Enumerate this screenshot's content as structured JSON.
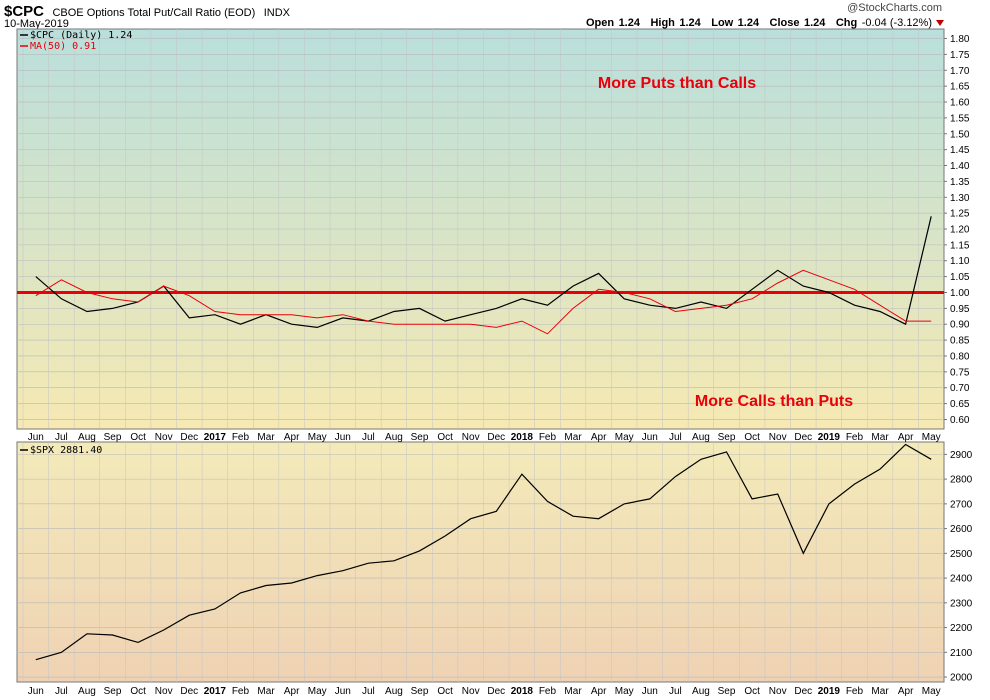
{
  "header": {
    "symbol": "$CPC",
    "description": "CBOE Options Total Put/Call Ratio (EOD)",
    "exchange": "INDX",
    "date": "10-May-2019",
    "credit": "@StockCharts.com",
    "ohlc": {
      "open_label": "Open",
      "open": "1.24",
      "high_label": "High",
      "high": "1.24",
      "low_label": "Low",
      "low": "1.24",
      "close_label": "Close",
      "close": "1.24",
      "chg_label": "Chg",
      "chg": "-0.04 (-3.12%)"
    }
  },
  "colors": {
    "cpc_line": "#000000",
    "ma_line": "#e8000b",
    "reference_line": "#e8000b",
    "annotation": "#e8000b",
    "top_gradient_top": "#b9dfdc",
    "top_gradient_bottom": "#f6e9b3",
    "bottom_gradient_top": "#f3eab9",
    "bottom_gradient_bottom": "#efd2b4"
  },
  "chart_data": [
    {
      "type": "line",
      "panel": "top",
      "legend": [
        {
          "label": "$CPC (Daily) 1.24",
          "color": "#000000"
        },
        {
          "label": "MA(50) 0.91",
          "color": "#e8000b"
        }
      ],
      "legend_position": "top-left",
      "ylim": [
        0.57,
        1.83
      ],
      "y_ticks": [
        0.6,
        0.65,
        0.7,
        0.75,
        0.8,
        0.85,
        0.9,
        0.95,
        1.0,
        1.05,
        1.1,
        1.15,
        1.2,
        1.25,
        1.3,
        1.35,
        1.4,
        1.45,
        1.5,
        1.55,
        1.6,
        1.65,
        1.7,
        1.75,
        1.8
      ],
      "y_tick_labels": [
        "0.60",
        "0.65",
        "0.70",
        "0.75",
        "0.80",
        "0.85",
        "0.90",
        "0.95",
        "1.00",
        "1.05",
        "1.10",
        "1.15",
        "1.20",
        "1.25",
        "1.30",
        "1.35",
        "1.40",
        "1.45",
        "1.50",
        "1.55",
        "1.60",
        "1.65",
        "1.70",
        "1.75",
        "1.80"
      ],
      "x_labels": [
        "Jun",
        "Jul",
        "Aug",
        "Sep",
        "Oct",
        "Nov",
        "Dec",
        "2017",
        "Feb",
        "Mar",
        "Apr",
        "May",
        "Jun",
        "Jul",
        "Aug",
        "Sep",
        "Oct",
        "Nov",
        "Dec",
        "2018",
        "Feb",
        "Mar",
        "Apr",
        "May",
        "Jun",
        "Jul",
        "Aug",
        "Sep",
        "Oct",
        "Nov",
        "Dec",
        "2019",
        "Feb",
        "Mar",
        "Apr",
        "May"
      ],
      "x_label_bold": [
        "2017",
        "2018",
        "2019"
      ],
      "reference_line": 1.0,
      "annotations": [
        "More Puts than Calls",
        "More Calls than Puts"
      ],
      "series": [
        {
          "name": "$CPC (Daily) 1.24",
          "x": [
            "2016-06",
            "2016-07",
            "2016-08",
            "2016-09",
            "2016-10",
            "2016-11",
            "2016-12",
            "2017-01",
            "2017-02",
            "2017-03",
            "2017-04",
            "2017-05",
            "2017-06",
            "2017-07",
            "2017-08",
            "2017-09",
            "2017-10",
            "2017-11",
            "2017-12",
            "2018-01",
            "2018-02",
            "2018-03",
            "2018-04",
            "2018-05",
            "2018-06",
            "2018-07",
            "2018-08",
            "2018-09",
            "2018-10",
            "2018-11",
            "2018-12",
            "2019-01",
            "2019-02",
            "2019-03",
            "2019-04",
            "2019-05"
          ],
          "values": [
            1.05,
            0.98,
            0.94,
            0.95,
            0.97,
            1.02,
            0.92,
            0.93,
            0.9,
            0.93,
            0.9,
            0.89,
            0.92,
            0.91,
            0.94,
            0.95,
            0.91,
            0.93,
            0.95,
            0.98,
            0.96,
            1.02,
            1.06,
            0.98,
            0.96,
            0.95,
            0.97,
            0.95,
            1.01,
            1.07,
            1.02,
            1.0,
            0.96,
            0.94,
            0.9,
            1.24
          ]
        },
        {
          "name": "MA(50) 0.91",
          "x": [
            "2016-06",
            "2016-07",
            "2016-08",
            "2016-09",
            "2016-10",
            "2016-11",
            "2016-12",
            "2017-01",
            "2017-02",
            "2017-03",
            "2017-04",
            "2017-05",
            "2017-06",
            "2017-07",
            "2017-08",
            "2017-09",
            "2017-10",
            "2017-11",
            "2017-12",
            "2018-01",
            "2018-02",
            "2018-03",
            "2018-04",
            "2018-05",
            "2018-06",
            "2018-07",
            "2018-08",
            "2018-09",
            "2018-10",
            "2018-11",
            "2018-12",
            "2019-01",
            "2019-02",
            "2019-03",
            "2019-04",
            "2019-05"
          ],
          "values": [
            0.99,
            1.04,
            1.0,
            0.98,
            0.97,
            1.02,
            0.99,
            0.94,
            0.93,
            0.93,
            0.93,
            0.92,
            0.93,
            0.91,
            0.9,
            0.9,
            0.9,
            0.9,
            0.89,
            0.91,
            0.87,
            0.95,
            1.01,
            1.0,
            0.98,
            0.94,
            0.95,
            0.96,
            0.98,
            1.03,
            1.07,
            1.04,
            1.01,
            0.96,
            0.91,
            0.91
          ]
        }
      ]
    },
    {
      "type": "line",
      "panel": "bottom",
      "legend": [
        {
          "label": "$SPX 2881.40",
          "color": "#000000"
        }
      ],
      "legend_position": "top-left",
      "ylim": [
        1980,
        2950
      ],
      "y_ticks": [
        2000,
        2100,
        2200,
        2300,
        2400,
        2500,
        2600,
        2700,
        2800,
        2900
      ],
      "y_tick_labels": [
        "2000",
        "2100",
        "2200",
        "2300",
        "2400",
        "2500",
        "2600",
        "2700",
        "2800",
        "2900"
      ],
      "x_labels": [
        "Jun",
        "Jul",
        "Aug",
        "Sep",
        "Oct",
        "Nov",
        "Dec",
        "2017",
        "Feb",
        "Mar",
        "Apr",
        "May",
        "Jun",
        "Jul",
        "Aug",
        "Sep",
        "Oct",
        "Nov",
        "Dec",
        "2018",
        "Feb",
        "Mar",
        "Apr",
        "May",
        "Jun",
        "Jul",
        "Aug",
        "Sep",
        "Oct",
        "Nov",
        "Dec",
        "2019",
        "Feb",
        "Mar",
        "Apr",
        "May"
      ],
      "x_label_bold": [
        "2017",
        "2018",
        "2019"
      ],
      "series": [
        {
          "name": "$SPX 2881.40",
          "x": [
            "2016-06",
            "2016-07",
            "2016-08",
            "2016-09",
            "2016-10",
            "2016-11",
            "2016-12",
            "2017-01",
            "2017-02",
            "2017-03",
            "2017-04",
            "2017-05",
            "2017-06",
            "2017-07",
            "2017-08",
            "2017-09",
            "2017-10",
            "2017-11",
            "2017-12",
            "2018-01",
            "2018-02",
            "2018-03",
            "2018-04",
            "2018-05",
            "2018-06",
            "2018-07",
            "2018-08",
            "2018-09",
            "2018-10",
            "2018-11",
            "2018-12",
            "2019-01",
            "2019-02",
            "2019-03",
            "2019-04",
            "2019-05"
          ],
          "values": [
            2070,
            2100,
            2175,
            2170,
            2140,
            2190,
            2250,
            2275,
            2340,
            2370,
            2380,
            2410,
            2430,
            2460,
            2470,
            2510,
            2570,
            2640,
            2670,
            2820,
            2710,
            2650,
            2640,
            2700,
            2720,
            2810,
            2880,
            2910,
            2720,
            2740,
            2500,
            2700,
            2780,
            2840,
            2940,
            2880
          ]
        }
      ]
    }
  ]
}
